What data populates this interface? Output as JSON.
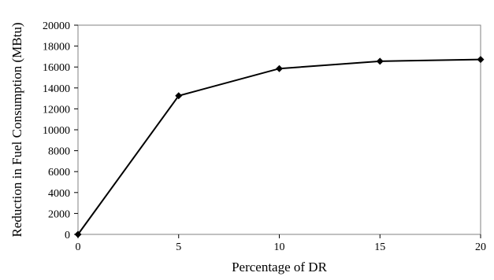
{
  "chart_data": {
    "type": "line",
    "xlabel": "Percentage of DR",
    "ylabel": "Reduction in Fuel Consumption (MBtu)",
    "xlim": [
      0,
      20
    ],
    "ylim": [
      0,
      20000
    ],
    "x_ticks": [
      "0",
      "5",
      "10",
      "15",
      "20"
    ],
    "y_ticks": [
      "0",
      "2000",
      "4000",
      "6000",
      "8000",
      "10000",
      "12000",
      "14000",
      "16000",
      "18000",
      "20000"
    ],
    "grid": false,
    "legend": "none",
    "series": [
      {
        "x": [
          0,
          5,
          10,
          15,
          20
        ],
        "values": [
          0,
          13250,
          15850,
          16550,
          16720
        ],
        "marker": "diamond",
        "color": "#000000"
      }
    ]
  }
}
